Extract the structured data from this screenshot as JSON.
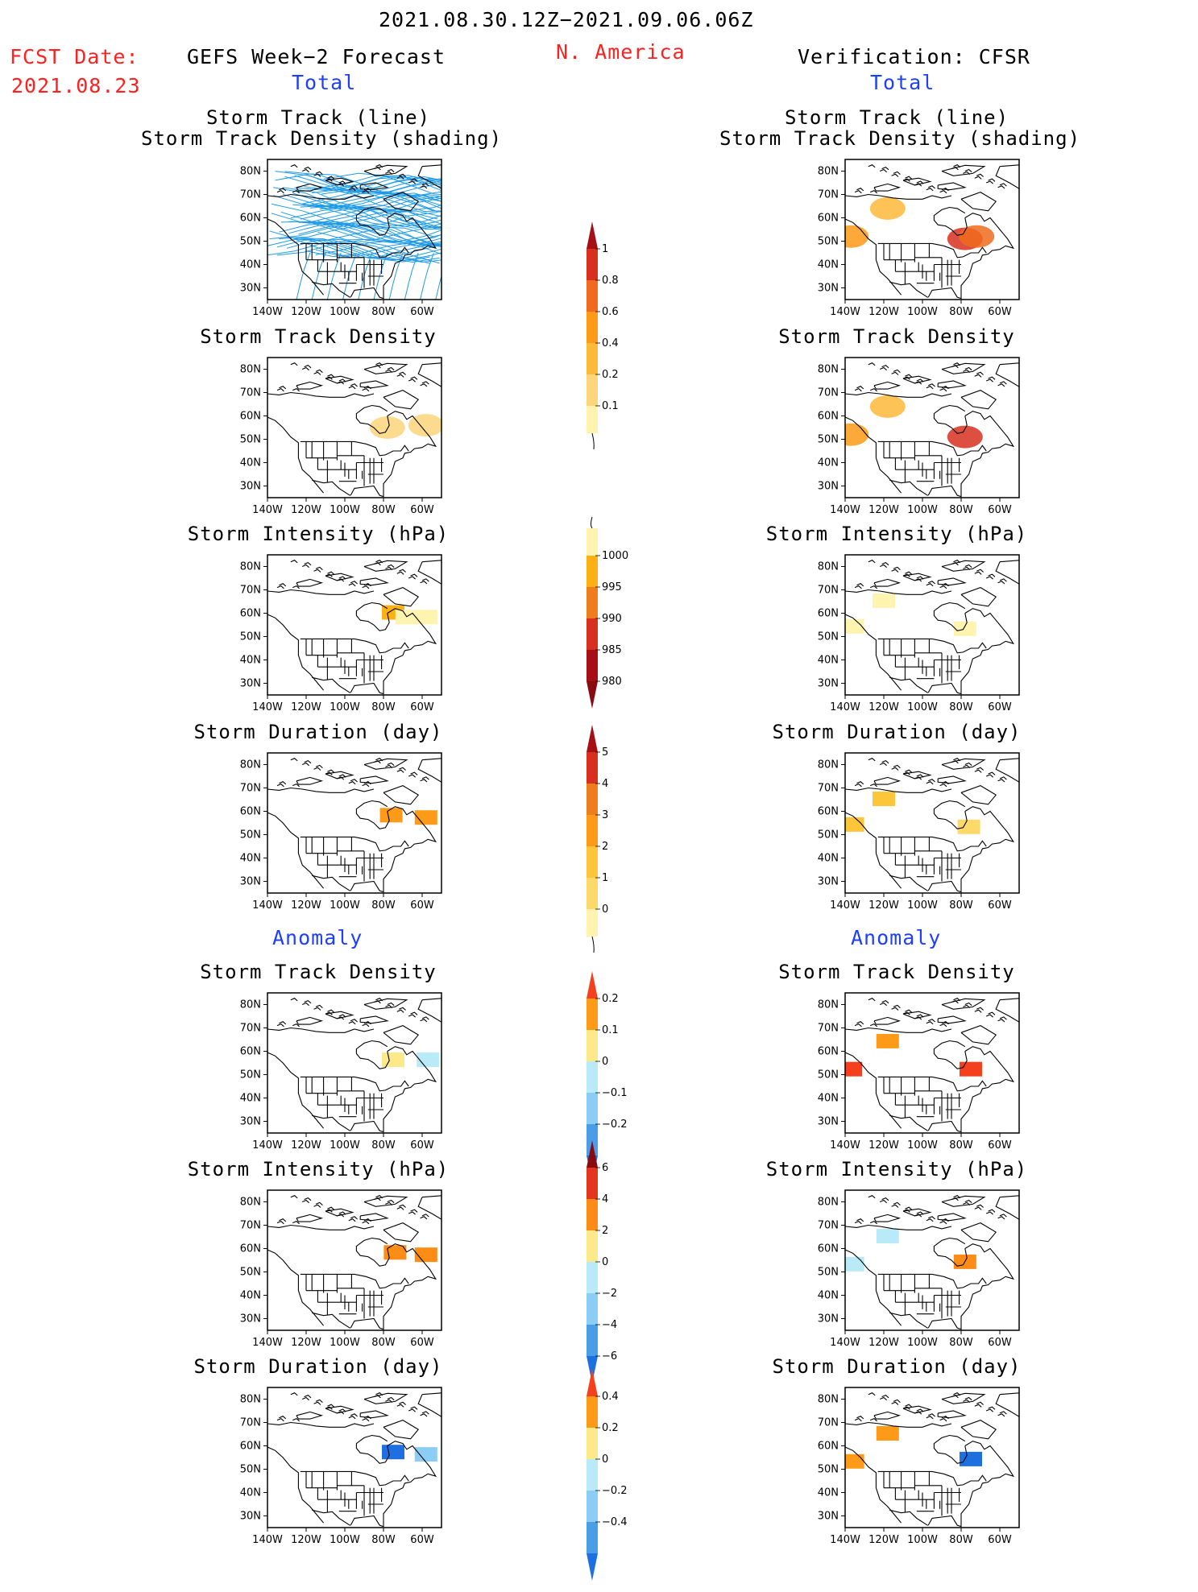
{
  "header": {
    "fcst_label": "FCST Date:",
    "fcst_date": "2021.08.23",
    "period": "2021.08.30.12Z−2021.09.06.06Z",
    "region": "N. America",
    "left_title": "GEFS Week−2 Forecast",
    "right_title": "Verification: CFSR",
    "total_left": "Total",
    "total_right": "Total",
    "anomaly_left": "Anomaly",
    "anomaly_right": "Anomaly"
  },
  "titles": {
    "track_line": "Storm Track (line)",
    "track_shading": "Storm Track Density (shading)",
    "density": "Storm Track Density",
    "intensity": "Storm Intensity (hPa)",
    "duration": "Storm Duration (day)"
  },
  "axes": {
    "lat_labels": [
      "80N",
      "70N",
      "60N",
      "50N",
      "40N",
      "30N"
    ],
    "lon_labels": [
      "140W",
      "120W",
      "100W",
      "80W",
      "60W"
    ]
  },
  "colors": {
    "map_line": "#000000",
    "track_line": "#1e9be8",
    "header_red": "#ff2020",
    "header_blue": "#1f3fff"
  },
  "colorbars": [
    {
      "id": "density_total",
      "labels": [
        "1",
        "0.8",
        "0.6",
        "0.4",
        "0.2",
        "0.1"
      ],
      "colors": [
        "#a50f15",
        "#d7301f",
        "#f06b1f",
        "#fd9a18",
        "#fdb939",
        "#fdd57a",
        "#fff3b0"
      ],
      "tail": "bottom"
    },
    {
      "id": "intensity_total",
      "labels": [
        "1000",
        "995",
        "990",
        "985",
        "980"
      ],
      "colors": [
        "#fff3b0",
        "#fdb013",
        "#f07d1d",
        "#d7301f",
        "#a50f15",
        "#8a0a12"
      ],
      "tail": "top"
    },
    {
      "id": "duration_total",
      "labels": [
        "5",
        "4",
        "3",
        "2",
        "1",
        "0"
      ],
      "colors": [
        "#a50f15",
        "#d7301f",
        "#f07d1d",
        "#fd9a18",
        "#fdc53a",
        "#fdd96a",
        "#fff3b0"
      ],
      "tail": "bottom"
    },
    {
      "id": "density_anom",
      "labels": [
        "0.2",
        "0.1",
        "0",
        "−0.1",
        "−0.2"
      ],
      "colors": [
        "#f4401c",
        "#fd9a18",
        "#fde88a",
        "#b8eaf8",
        "#8ccdf6",
        "#4a9ee8",
        "#1e6fe0"
      ],
      "tail": "none"
    },
    {
      "id": "intensity_anom",
      "labels": [
        "6",
        "4",
        "2",
        "0",
        "−2",
        "−4",
        "−6"
      ],
      "colors": [
        "#8a0a12",
        "#e2361f",
        "#fd8c17",
        "#fde88a",
        "#b8eaf8",
        "#8ccdf6",
        "#4a9ee8",
        "#1e6fe0"
      ],
      "tail": "none"
    },
    {
      "id": "duration_anom",
      "labels": [
        "0.4",
        "0.2",
        "0",
        "−0.2",
        "−0.4"
      ],
      "colors": [
        "#f4401c",
        "#fd9a18",
        "#fde88a",
        "#b8eaf8",
        "#8ccdf6",
        "#4a9ee8",
        "#1e6fe0"
      ],
      "tail": "none"
    }
  ],
  "chart_data": [
    {
      "type": "heatmap",
      "panel": "gefs_total_track",
      "title": "Storm Track (line)",
      "subtitle": "Storm Track Density (shading)",
      "x_range": [
        "140W",
        "50W"
      ],
      "y_range": [
        "25N",
        "85N"
      ],
      "cells": []
    },
    {
      "type": "heatmap",
      "panel": "cfsr_total_track",
      "title": "Storm Track (line)",
      "subtitle": "Storm Track Density (shading)",
      "cells": [
        {
          "lon": -137,
          "lat": 52,
          "value": 0.4
        },
        {
          "lon": -118,
          "lat": 64,
          "value": 0.3
        },
        {
          "lon": -78,
          "lat": 51,
          "value": 0.8
        },
        {
          "lon": -72,
          "lat": 52,
          "value": 0.6
        }
      ]
    },
    {
      "type": "heatmap",
      "panel": "gefs_total_density",
      "title": "Storm Track Density",
      "cells": [
        {
          "lon": -78,
          "lat": 55,
          "value": 0.15
        },
        {
          "lon": -58,
          "lat": 56,
          "value": 0.15
        }
      ]
    },
    {
      "type": "heatmap",
      "panel": "cfsr_total_density",
      "title": "Storm Track Density",
      "cells": [
        {
          "lon": -137,
          "lat": 52,
          "value": 0.4
        },
        {
          "lon": -118,
          "lat": 64,
          "value": 0.3
        },
        {
          "lon": -78,
          "lat": 51,
          "value": 0.8
        }
      ]
    },
    {
      "type": "heatmap",
      "panel": "gefs_total_intensity",
      "title": "Storm Intensity (hPa)",
      "cells": [
        {
          "lon": -75,
          "lat": 60,
          "value": 992
        },
        {
          "lon": -68,
          "lat": 58,
          "value": 995
        },
        {
          "lon": -58,
          "lat": 58,
          "value": 995
        }
      ]
    },
    {
      "type": "heatmap",
      "panel": "cfsr_total_intensity",
      "title": "Storm Intensity (hPa)",
      "cells": [
        {
          "lon": -136,
          "lat": 54,
          "value": 995
        },
        {
          "lon": -120,
          "lat": 65,
          "value": 995
        },
        {
          "lon": -78,
          "lat": 53,
          "value": 995
        }
      ]
    },
    {
      "type": "heatmap",
      "panel": "gefs_total_duration",
      "title": "Storm Duration (day)",
      "cells": [
        {
          "lon": -76,
          "lat": 58,
          "value": 3
        },
        {
          "lon": -58,
          "lat": 57,
          "value": 3
        }
      ]
    },
    {
      "type": "heatmap",
      "panel": "cfsr_total_duration",
      "title": "Storm Duration (day)",
      "cells": [
        {
          "lon": -136,
          "lat": 54,
          "value": 2
        },
        {
          "lon": -120,
          "lat": 65,
          "value": 2
        },
        {
          "lon": -76,
          "lat": 53,
          "value": 1
        }
      ]
    },
    {
      "type": "heatmap",
      "panel": "gefs_anom_density",
      "title": "Storm Track Density",
      "cells": [
        {
          "lon": -75,
          "lat": 56,
          "value": 0.05
        },
        {
          "lon": -57,
          "lat": 56,
          "value": -0.05
        }
      ]
    },
    {
      "type": "heatmap",
      "panel": "cfsr_anom_density",
      "title": "Storm Track Density",
      "cells": [
        {
          "lon": -137,
          "lat": 52,
          "value": 0.2
        },
        {
          "lon": -118,
          "lat": 64,
          "value": 0.15
        },
        {
          "lon": -75,
          "lat": 52,
          "value": 0.2
        }
      ]
    },
    {
      "type": "heatmap",
      "panel": "gefs_anom_intensity",
      "title": "Storm Intensity (hPa)",
      "cells": [
        {
          "lon": -74,
          "lat": 58,
          "value": 3
        },
        {
          "lon": -58,
          "lat": 57,
          "value": 3
        }
      ]
    },
    {
      "type": "heatmap",
      "panel": "cfsr_anom_intensity",
      "title": "Storm Intensity (hPa)",
      "cells": [
        {
          "lon": -136,
          "lat": 53,
          "value": -1
        },
        {
          "lon": -118,
          "lat": 65,
          "value": -1
        },
        {
          "lon": -78,
          "lat": 54,
          "value": 3
        }
      ]
    },
    {
      "type": "heatmap",
      "panel": "gefs_anom_duration",
      "title": "Storm Duration (day)",
      "cells": [
        {
          "lon": -75,
          "lat": 57,
          "value": -0.3
        },
        {
          "lon": -58,
          "lat": 56,
          "value": -0.2
        }
      ]
    },
    {
      "type": "heatmap",
      "panel": "cfsr_anom_duration",
      "title": "Storm Duration (day)",
      "cells": [
        {
          "lon": -136,
          "lat": 53,
          "value": 0.3
        },
        {
          "lon": -118,
          "lat": 65,
          "value": 0.2
        },
        {
          "lon": -75,
          "lat": 54,
          "value": -0.3
        }
      ]
    }
  ]
}
